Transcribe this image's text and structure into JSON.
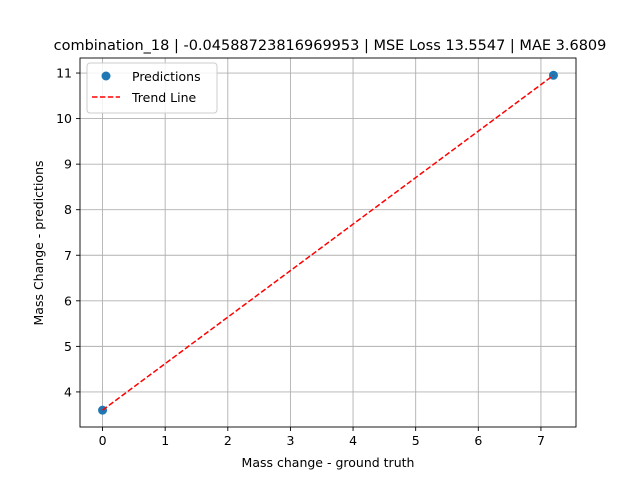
{
  "chart_data": {
    "type": "scatter",
    "title": "combination_18 | -0.04588723816969953 | MSE Loss 13.5547 | MAE 3.6809",
    "xlabel": "Mass change - ground truth",
    "ylabel": "Mass Change - predictions",
    "xlim": [
      -0.36,
      7.56
    ],
    "ylim": [
      3.23,
      11.33
    ],
    "xticks": [
      0,
      1,
      2,
      3,
      4,
      5,
      6,
      7
    ],
    "yticks": [
      4,
      5,
      6,
      7,
      8,
      9,
      10,
      11
    ],
    "grid": true,
    "legend_position": "upper-left",
    "series": [
      {
        "name": "Predictions",
        "kind": "scatter",
        "color": "#1f77b4",
        "points": [
          {
            "x": 0.0,
            "y": 3.6
          },
          {
            "x": 7.2,
            "y": 10.95
          }
        ]
      },
      {
        "name": "Trend Line",
        "kind": "line",
        "style": "dashed",
        "color": "#ff0000",
        "points": [
          {
            "x": 0.0,
            "y": 3.6
          },
          {
            "x": 7.2,
            "y": 10.95
          }
        ]
      }
    ]
  }
}
